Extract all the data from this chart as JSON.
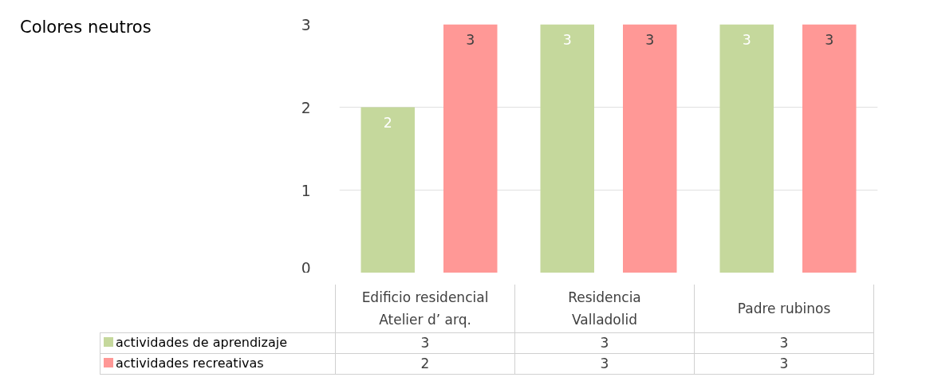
{
  "chart_data": {
    "type": "bar",
    "title": "Colores neutros",
    "categories": [
      "Edificio residencial Atelier d’ arq.",
      "Residencia Valladolid",
      "Padre rubinos"
    ],
    "series": [
      {
        "name": "actividades de aprendizaje",
        "color": "#c5d89c",
        "values": [
          2,
          3,
          3
        ]
      },
      {
        "name": "actividades recreativas",
        "color": "#ff9896",
        "values": [
          3,
          3,
          3
        ]
      }
    ],
    "annotations": [
      "3",
      "3",
      "3",
      "2",
      "3",
      "3"
    ],
    "ylim": [
      0,
      3
    ],
    "yticks": [
      0,
      1,
      2,
      3
    ],
    "grid": "y",
    "data_labels": true,
    "legend": "bottom left"
  }
}
